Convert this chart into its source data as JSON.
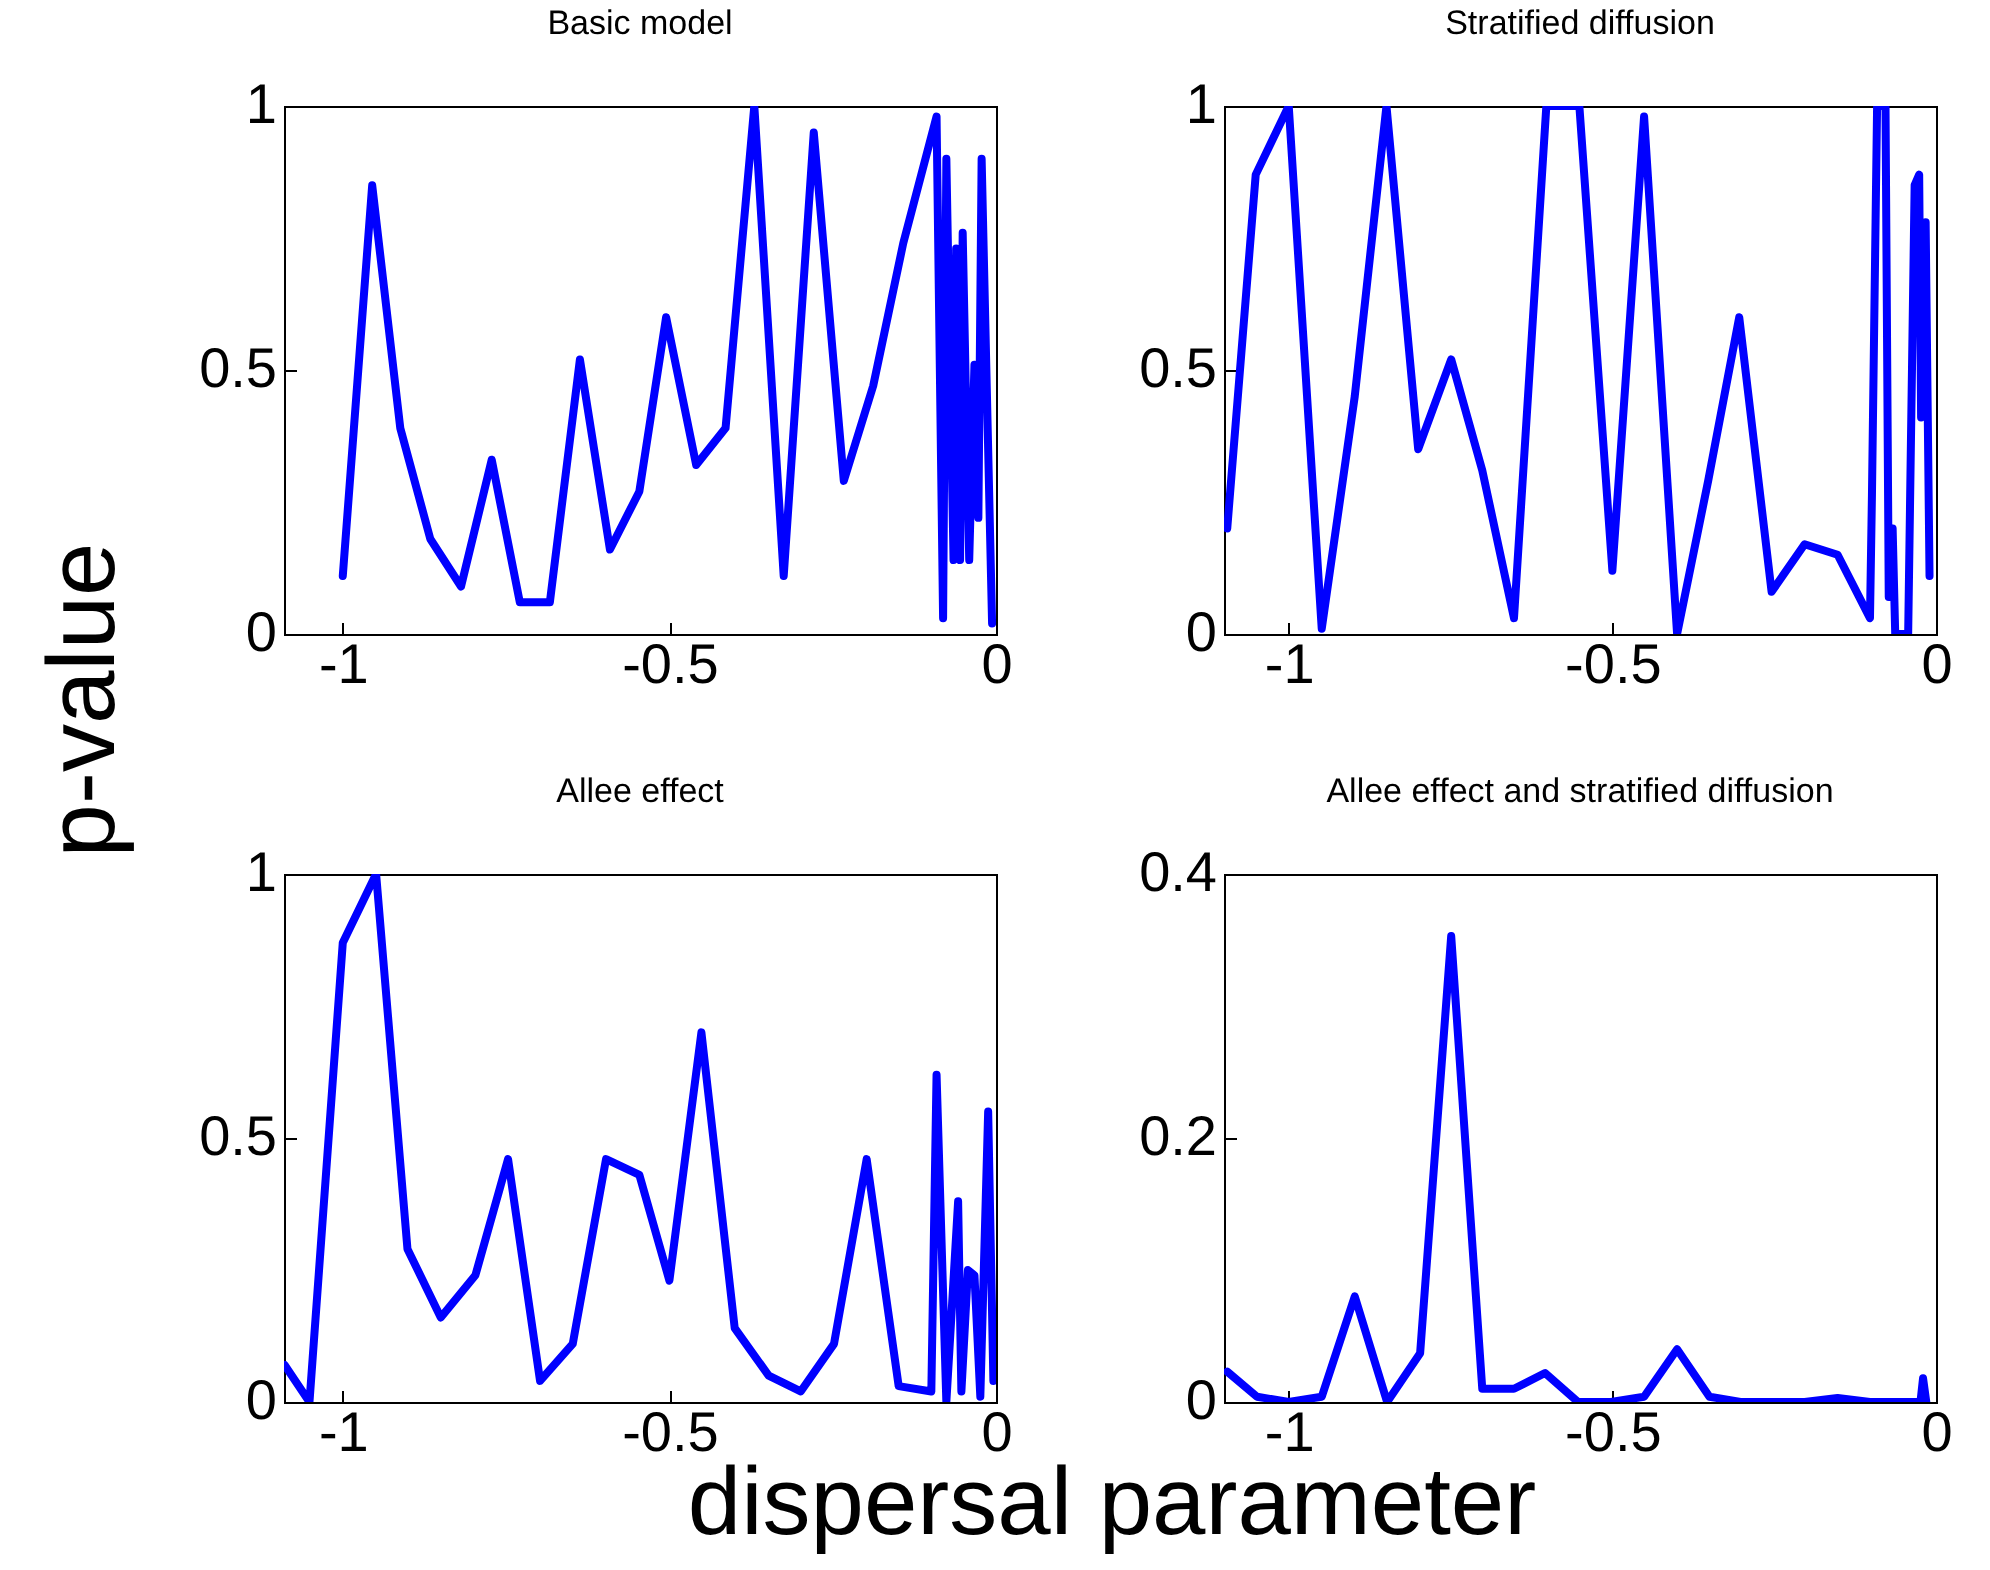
{
  "chart_data": [
    {
      "type": "line",
      "title": "Basic model",
      "ylabel": "p-value",
      "xlim": [
        -1.09,
        0
      ],
      "xticks": [
        -1,
        -0.5,
        0
      ],
      "ylim": [
        0,
        1
      ],
      "yticks": [
        0,
        0.5,
        1
      ],
      "grid": false,
      "marker": "none",
      "line_style": "solid",
      "x": [
        -1.0,
        -0.955,
        -0.912,
        -0.866,
        -0.819,
        -0.772,
        -0.729,
        -0.683,
        -0.637,
        -0.591,
        -0.546,
        -0.505,
        -0.459,
        -0.414,
        -0.37,
        -0.325,
        -0.279,
        -0.233,
        -0.188,
        -0.142,
        -0.091,
        -0.081,
        -0.076,
        -0.065,
        -0.061,
        -0.055,
        -0.051,
        -0.041,
        -0.033,
        -0.027,
        -0.022,
        -0.006
      ],
      "series": [
        {
          "color": "#0000ff",
          "values": [
            0.11,
            0.85,
            0.39,
            0.18,
            0.09,
            0.33,
            0.06,
            0.06,
            0.52,
            0.16,
            0.27,
            0.6,
            0.32,
            0.39,
            1.0,
            0.11,
            0.95,
            0.29,
            0.47,
            0.74,
            0.98,
            0.03,
            0.9,
            0.14,
            0.73,
            0.14,
            0.76,
            0.14,
            0.51,
            0.22,
            0.9,
            0.02
          ]
        }
      ]
    },
    {
      "type": "line",
      "title": "Stratified diffusion",
      "xlim": [
        -1.1,
        0
      ],
      "xticks": [
        -1,
        -0.5,
        0
      ],
      "ylim": [
        0,
        1
      ],
      "yticks": [
        0,
        0.5,
        1
      ],
      "grid": false,
      "marker": "none",
      "line_style": "solid",
      "x": [
        -1.095,
        -1.051,
        -1.0,
        -0.949,
        -0.898,
        -0.849,
        -0.8,
        -0.749,
        -0.701,
        -0.652,
        -0.602,
        -0.551,
        -0.5,
        -0.451,
        -0.4,
        -0.352,
        -0.304,
        -0.254,
        -0.203,
        -0.152,
        -0.102,
        -0.099,
        -0.091,
        -0.078,
        -0.073,
        -0.067,
        -0.063,
        -0.043,
        -0.033,
        -0.026,
        -0.023,
        -0.016,
        -0.01
      ],
      "series": [
        {
          "color": "#0000ff",
          "values": [
            0.2,
            0.87,
            1.0,
            0.01,
            0.45,
            1.0,
            0.35,
            0.52,
            0.31,
            0.03,
            1.0,
            1.0,
            0.12,
            0.98,
            0.0,
            0.29,
            0.6,
            0.08,
            0.17,
            0.15,
            0.03,
            0.26,
            1.0,
            1.0,
            0.07,
            0.2,
            0.0,
            0.0,
            0.85,
            0.87,
            0.41,
            0.78,
            0.11
          ]
        }
      ]
    },
    {
      "type": "line",
      "title": "Allee effect",
      "xlabel": "dispersal parameter",
      "xlim": [
        -1.09,
        0
      ],
      "xticks": [
        -1,
        -0.5,
        0
      ],
      "ylim": [
        0,
        1
      ],
      "yticks": [
        0,
        0.5,
        1
      ],
      "grid": false,
      "marker": "none",
      "line_style": "solid",
      "x": [
        -1.089,
        -1.051,
        -1.0,
        -0.949,
        -0.901,
        -0.85,
        -0.797,
        -0.747,
        -0.698,
        -0.648,
        -0.597,
        -0.546,
        -0.5,
        -0.451,
        -0.4,
        -0.348,
        -0.299,
        -0.248,
        -0.198,
        -0.149,
        -0.099,
        -0.091,
        -0.076,
        -0.058,
        -0.053,
        -0.043,
        -0.033,
        -0.024,
        -0.012,
        -0.004
      ],
      "series": [
        {
          "color": "#0000ff",
          "values": [
            0.07,
            0.0,
            0.87,
            1.0,
            0.29,
            0.16,
            0.24,
            0.46,
            0.04,
            0.11,
            0.46,
            0.43,
            0.23,
            0.7,
            0.14,
            0.05,
            0.02,
            0.11,
            0.46,
            0.03,
            0.02,
            0.62,
            0.0,
            0.38,
            0.02,
            0.25,
            0.24,
            0.01,
            0.55,
            0.04
          ]
        }
      ]
    },
    {
      "type": "line",
      "title": "Allee effect and stratified diffusion",
      "xlim": [
        -1.1,
        0
      ],
      "xticks": [
        -1,
        -0.5,
        0
      ],
      "ylim": [
        0,
        0.4
      ],
      "yticks": [
        0,
        0.2,
        0.4
      ],
      "grid": false,
      "marker": "none",
      "line_style": "solid",
      "x": [
        -1.095,
        -1.049,
        -1.0,
        -0.949,
        -0.898,
        -0.848,
        -0.797,
        -0.749,
        -0.701,
        -0.652,
        -0.604,
        -0.553,
        -0.502,
        -0.451,
        -0.4,
        -0.35,
        -0.302,
        -0.251,
        -0.203,
        -0.152,
        -0.102,
        -0.051,
        -0.024,
        -0.02,
        -0.015
      ],
      "series": [
        {
          "color": "#0000ff",
          "values": [
            0.023,
            0.004,
            0.0,
            0.004,
            0.08,
            0.0,
            0.037,
            0.353,
            0.01,
            0.01,
            0.022,
            0.0,
            0.0,
            0.004,
            0.04,
            0.004,
            0.0,
            0.0,
            0.0,
            0.003,
            0.0,
            0.0,
            0.0,
            0.018,
            0.0
          ]
        }
      ]
    }
  ]
}
